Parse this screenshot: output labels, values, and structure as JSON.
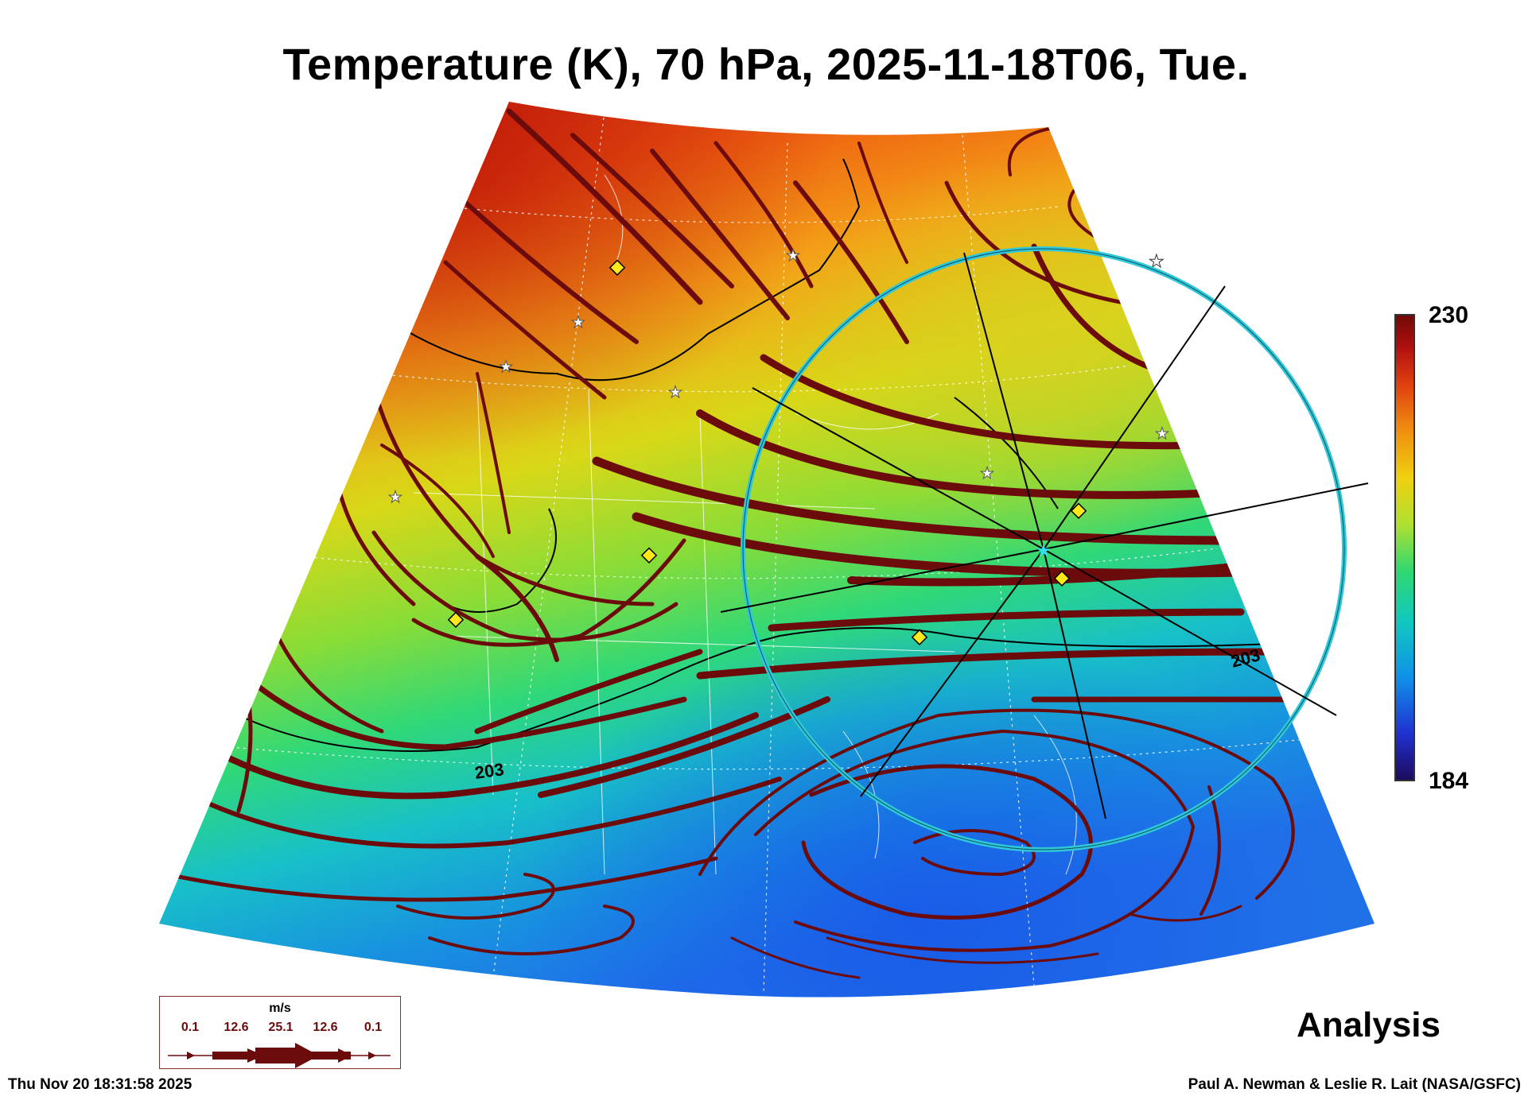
{
  "title": "Temperature (K), 70 hPa, 2025-11-18T06, Tue.",
  "colorbar": {
    "max_label": "230",
    "min_label": "184",
    "stops": [
      "#1e0a5a",
      "#2030d0",
      "#1090e8",
      "#10c8c0",
      "#30d870",
      "#b0e030",
      "#f0d010",
      "#f09010",
      "#e04010",
      "#b01010",
      "#700808"
    ]
  },
  "contour_label_1": "203",
  "contour_label_2": "203",
  "legend": {
    "unit": "m/s",
    "values": [
      "0.1",
      "12.6",
      "25.1",
      "12.6",
      "0.1"
    ]
  },
  "analysis_label": "Analysis",
  "timestamp": "Thu Nov 20 18:31:58 2025",
  "credit": "Paul A. Newman & Leslie R. Lait (NASA/GSFC)",
  "colors": {
    "streamline": "#6b0b0b",
    "ring": "#30c8d8",
    "station_diamond": "#ffe81a"
  }
}
